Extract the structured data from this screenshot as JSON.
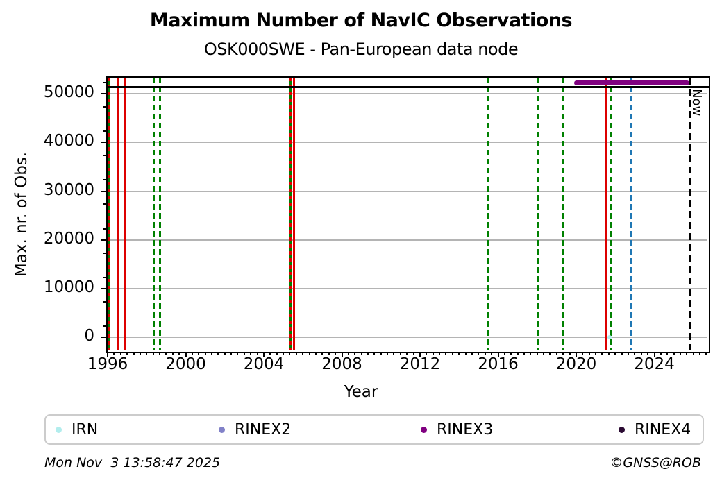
{
  "header": {
    "title": "Maximum Number of NavIC Observations",
    "subtitle": "OSK000SWE - Pan-European data node"
  },
  "footer": {
    "timestamp": "Mon Nov  3 13:58:47 2025",
    "copyright": "©GNSS@ROB"
  },
  "chart_data": {
    "type": "line",
    "title": "Maximum Number of NavIC Observations",
    "subtitle": "OSK000SWE - Pan-European data node",
    "xlabel": "Year",
    "ylabel": "Max. nr. of Obs.",
    "xlim": [
      1996.0,
      2026.72
    ],
    "ylim": [
      -2700,
      53300
    ],
    "x_major_ticks": [
      1996,
      2000,
      2004,
      2008,
      2012,
      2016,
      2020,
      2024
    ],
    "x_minor_interval": 0.3333333,
    "y_major_ticks": [
      0,
      10000,
      20000,
      30000,
      40000,
      50000
    ],
    "y_minor_interval": 5000,
    "grid": "horizontal-only",
    "legend_position": "bottom",
    "grid_color": "#b4b4b4",
    "reference_line": {
      "name": "max-observations-reference",
      "value": 51400,
      "color": "#000000",
      "style": "solid"
    },
    "now_line": {
      "x": 2025.8,
      "label": "Now",
      "color": "#000000",
      "style": "dashed"
    },
    "event_lines": [
      {
        "year": 1996.08,
        "color": "#008000",
        "style": "solid"
      },
      {
        "year": 1996.08,
        "color": "#dd0000",
        "style": "dashed"
      },
      {
        "year": 1996.55,
        "color": "#dd0000",
        "style": "solid"
      },
      {
        "year": 1996.9,
        "color": "#dd0000",
        "style": "solid"
      },
      {
        "year": 1998.35,
        "color": "#008000",
        "style": "dashed"
      },
      {
        "year": 1998.7,
        "color": "#008000",
        "style": "dashed"
      },
      {
        "year": 2005.36,
        "color": "#008000",
        "style": "solid"
      },
      {
        "year": 2005.36,
        "color": "#dd0000",
        "style": "dashed"
      },
      {
        "year": 2005.55,
        "color": "#dd0000",
        "style": "solid"
      },
      {
        "year": 2015.47,
        "color": "#008000",
        "style": "dashed"
      },
      {
        "year": 2018.06,
        "color": "#008000",
        "style": "dashed"
      },
      {
        "year": 2019.33,
        "color": "#008000",
        "style": "dashed"
      },
      {
        "year": 2021.51,
        "color": "#dd0000",
        "style": "solid"
      },
      {
        "year": 2021.77,
        "color": "#008000",
        "style": "dashed"
      },
      {
        "year": 2022.81,
        "color": "#1f77b4",
        "style": "dashed"
      }
    ],
    "series": [
      {
        "name": "IRN",
        "color": "#b2eded",
        "type": "points",
        "points": [
          [
            2021.72,
            0
          ]
        ]
      },
      {
        "name": "RINEX2",
        "color": "#8181c8",
        "type": "points",
        "points": []
      },
      {
        "name": "RINEX3",
        "color": "#800080",
        "type": "segment",
        "y": 52300,
        "x_start": 2019.9,
        "x_end": 2025.8
      },
      {
        "name": "RINEX4",
        "color": "#2b0b33",
        "type": "points",
        "points": []
      }
    ],
    "legend": [
      "IRN",
      "RINEX2",
      "RINEX3",
      "RINEX4"
    ]
  }
}
